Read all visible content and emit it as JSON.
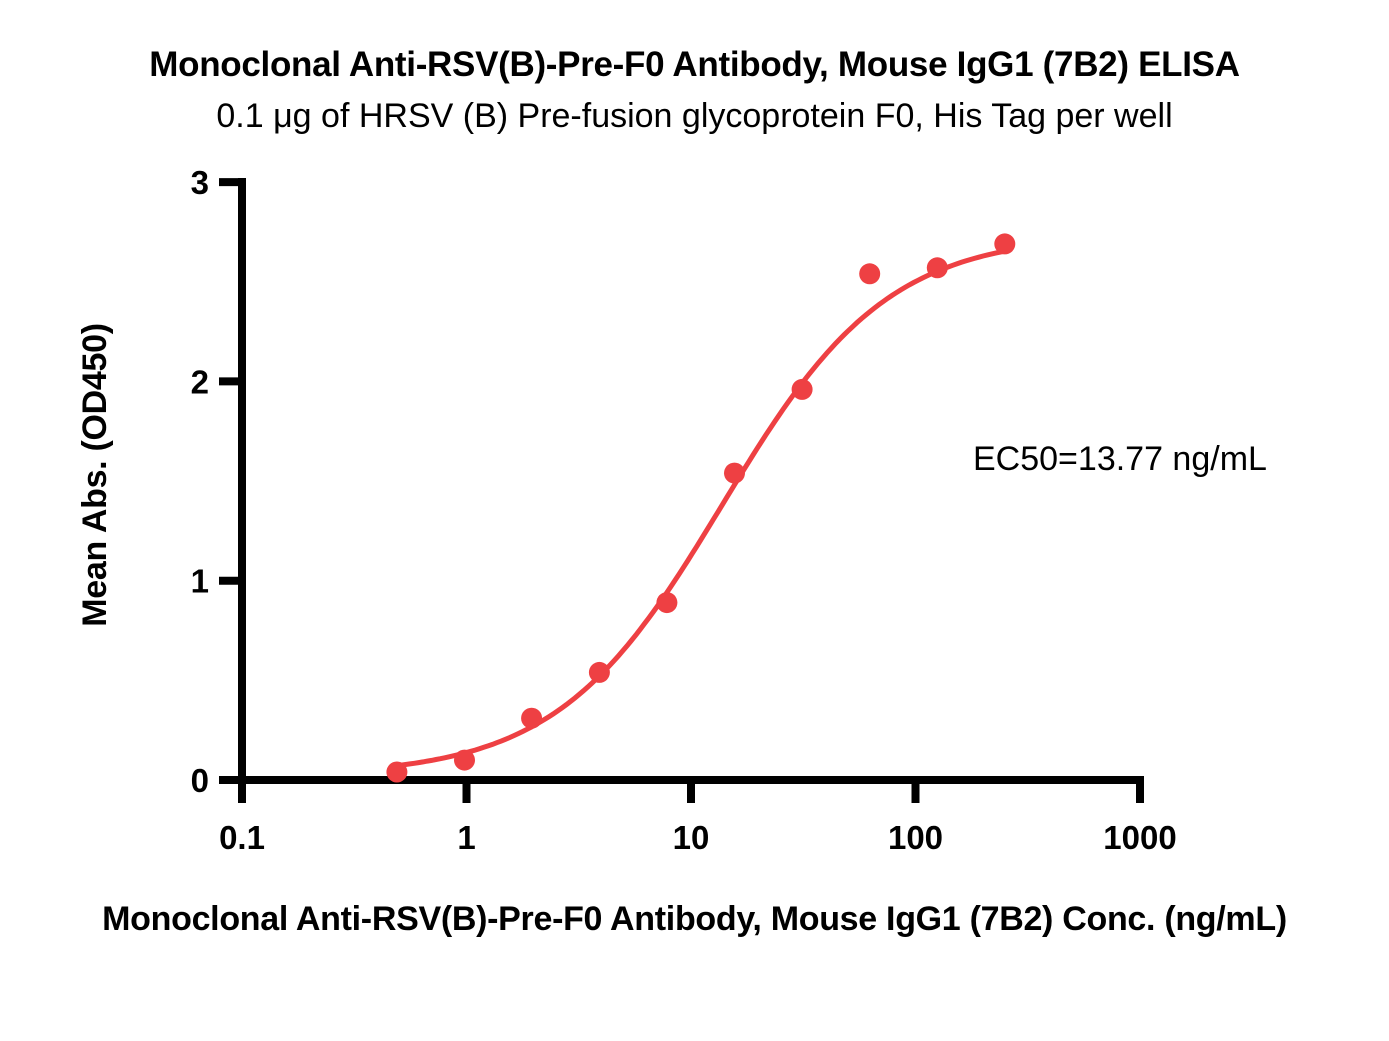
{
  "figure": {
    "title": "Monoclonal Anti-RSV(B)-Pre-F0 Antibody, Mouse IgG1 (7B2) ELISA",
    "subtitle": "0.1 μg of HRSV (B) Pre-fusion glycoprotein F0, His Tag per well",
    "annotation": "EC50=13.77 ng/mL",
    "xlabel": "Monoclonal Anti-RSV(B)-Pre-F0 Antibody, Mouse IgG1 (7B2) Conc. (ng/mL)",
    "ylabel": "Mean Abs. (OD450)"
  },
  "chart_data": {
    "type": "scatter",
    "title": "Monoclonal Anti-RSV(B)-Pre-F0 Antibody, Mouse IgG1 (7B2) ELISA",
    "subtitle": "0.1 μg of HRSV (B) Pre-fusion glycoprotein F0, His Tag per well",
    "xlabel": "Monoclonal Anti-RSV(B)-Pre-F0 Antibody, Mouse IgG1 (7B2) Conc. (ng/mL)",
    "ylabel": "Mean Abs. (OD450)",
    "x_scale": "log10",
    "xlim": [
      0.1,
      1000
    ],
    "ylim": [
      0,
      3
    ],
    "grid": false,
    "legend": "none",
    "series_color": "#EE4043",
    "x": [
      0.49,
      0.98,
      1.95,
      3.91,
      7.81,
      15.63,
      31.25,
      62.5,
      125,
      250
    ],
    "y": [
      0.04,
      0.1,
      0.31,
      0.54,
      0.89,
      1.54,
      1.96,
      2.54,
      2.57,
      2.69
    ],
    "x_ticks": [
      {
        "value": 0.1,
        "label": "0.1"
      },
      {
        "value": 1,
        "label": "1"
      },
      {
        "value": 10,
        "label": "10"
      },
      {
        "value": 100,
        "label": "100"
      },
      {
        "value": 1000,
        "label": "1000"
      }
    ],
    "y_ticks": [
      {
        "value": 0,
        "label": "0"
      },
      {
        "value": 1,
        "label": "1"
      },
      {
        "value": 2,
        "label": "2"
      },
      {
        "value": 3,
        "label": "3"
      }
    ],
    "ec50_ng_ml": 13.77,
    "annotation": "EC50=13.77 ng/mL",
    "fit_curve": {
      "model": "4PL",
      "bottom": 0.02,
      "top": 2.74,
      "ec50": 13.77,
      "hill": 1.18,
      "x_start": 0.49,
      "x_end": 250
    }
  }
}
